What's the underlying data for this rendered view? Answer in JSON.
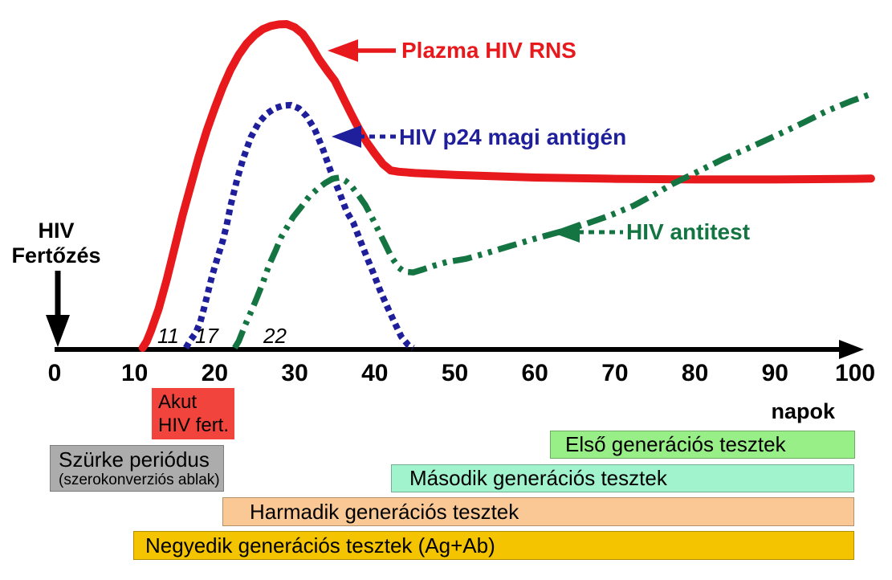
{
  "chart_data": {
    "type": "line",
    "title": "",
    "xlabel": "napok",
    "ylabel": "",
    "x_range": [
      0,
      102
    ],
    "x_ticks": [
      "0",
      "10",
      "20",
      "30",
      "40",
      "50",
      "60",
      "70",
      "80",
      "90",
      "100"
    ],
    "x_tick_values": [
      0,
      10,
      20,
      30,
      40,
      50,
      60,
      70,
      80,
      90,
      100
    ],
    "y_axis_note": "relative level, unlabeled axis (0-100 normalized)",
    "grid": "off",
    "legend_position": "inline-arrow-annotations",
    "onset_labels": [
      {
        "text": "11",
        "day": 11
      },
      {
        "text": "17",
        "day": 17
      },
      {
        "text": "22",
        "day": 22
      }
    ],
    "series": [
      {
        "name": "Plazma HIV RNS",
        "color": "#E8191D",
        "line_style": "solid",
        "points": [
          [
            11,
            0
          ],
          [
            11.5,
            2
          ],
          [
            12,
            5
          ],
          [
            13,
            12
          ],
          [
            14,
            21
          ],
          [
            15,
            31
          ],
          [
            16,
            41
          ],
          [
            17,
            50
          ],
          [
            18,
            59
          ],
          [
            19,
            67
          ],
          [
            20,
            74
          ],
          [
            21,
            80.5
          ],
          [
            22,
            86
          ],
          [
            23,
            90.5
          ],
          [
            24,
            94
          ],
          [
            25,
            96.6
          ],
          [
            26,
            98.4
          ],
          [
            27,
            99.4
          ],
          [
            28,
            99.9
          ],
          [
            29,
            100
          ],
          [
            30,
            99
          ],
          [
            31,
            97
          ],
          [
            32,
            93.5
          ],
          [
            33,
            89.3
          ],
          [
            34,
            85.8
          ],
          [
            35,
            82.5
          ],
          [
            36,
            77.5
          ],
          [
            37,
            72.5
          ],
          [
            38,
            67.7
          ],
          [
            39,
            63.5
          ],
          [
            40,
            60
          ],
          [
            41,
            56.8
          ],
          [
            42,
            54.8
          ],
          [
            43,
            54.4
          ],
          [
            45,
            54
          ],
          [
            50,
            53.4
          ],
          [
            55,
            53
          ],
          [
            60,
            52.6
          ],
          [
            70,
            52.2
          ],
          [
            80,
            52
          ],
          [
            90,
            52
          ],
          [
            100,
            52.2
          ],
          [
            102,
            52.3
          ]
        ]
      },
      {
        "name": "HIV p24 magi antigén",
        "color": "#1F1F9B",
        "line_style": "dotted",
        "points": [
          [
            16.4,
            0
          ],
          [
            17,
            2.5
          ],
          [
            17.6,
            4.5
          ],
          [
            18.2,
            8
          ],
          [
            18.7,
            12.5
          ],
          [
            19.2,
            17.5
          ],
          [
            19.6,
            21.5
          ],
          [
            20,
            25
          ],
          [
            20.5,
            29
          ],
          [
            21,
            33
          ],
          [
            21.5,
            38
          ],
          [
            22,
            44
          ],
          [
            22.8,
            52
          ],
          [
            23.5,
            58
          ],
          [
            24.5,
            65
          ],
          [
            25.5,
            69.5
          ],
          [
            26.5,
            72.3
          ],
          [
            27.5,
            74
          ],
          [
            28.5,
            74.8
          ],
          [
            29.5,
            75
          ],
          [
            30.5,
            74
          ],
          [
            31.5,
            71.5
          ],
          [
            32.5,
            67.5
          ],
          [
            33.5,
            61.5
          ],
          [
            34.5,
            54.5
          ],
          [
            35.6,
            47.9
          ],
          [
            36.5,
            42
          ],
          [
            37.3,
            38.7
          ],
          [
            38.8,
            29.3
          ],
          [
            40,
            22
          ],
          [
            40.6,
            18.1
          ],
          [
            41.5,
            13
          ],
          [
            42.3,
            8.7
          ],
          [
            43.3,
            3.5
          ],
          [
            44.2,
            0.8
          ],
          [
            44.8,
            0
          ]
        ]
      },
      {
        "name": "HIV antitest",
        "color": "#147542",
        "line_style": "dash-dot-dot",
        "points": [
          [
            22.5,
            0
          ],
          [
            23,
            2
          ],
          [
            23.8,
            7
          ],
          [
            24.6,
            11.5
          ],
          [
            25.3,
            15.6
          ],
          [
            26,
            20
          ],
          [
            26.8,
            25.6
          ],
          [
            27.6,
            30
          ],
          [
            28.3,
            34.2
          ],
          [
            29.1,
            37.5
          ],
          [
            29.8,
            40.4
          ],
          [
            30.8,
            43.5
          ],
          [
            31.8,
            46.7
          ],
          [
            32.8,
            49
          ],
          [
            33.8,
            50.9
          ],
          [
            34.7,
            52.2
          ],
          [
            35.6,
            52.6
          ],
          [
            36.4,
            51.5
          ],
          [
            37.1,
            49.9
          ],
          [
            38,
            47
          ],
          [
            38.8,
            44.2
          ],
          [
            39.6,
            40.5
          ],
          [
            40.5,
            36
          ],
          [
            41.3,
            32
          ],
          [
            42.1,
            28
          ],
          [
            43,
            24.8
          ],
          [
            43.7,
            23.5
          ],
          [
            44.8,
            23.3
          ],
          [
            46,
            24.2
          ],
          [
            47.3,
            25.3
          ],
          [
            49,
            26.5
          ],
          [
            51.4,
            27.5
          ],
          [
            54,
            29.3
          ],
          [
            57.4,
            31.8
          ],
          [
            60.4,
            34
          ],
          [
            63.4,
            36
          ],
          [
            66.4,
            38.3
          ],
          [
            69.4,
            40.9
          ],
          [
            72.4,
            44
          ],
          [
            75,
            47.5
          ],
          [
            77.1,
            50.5
          ],
          [
            80,
            54
          ],
          [
            83.5,
            58.3
          ],
          [
            86.5,
            61.5
          ],
          [
            90.5,
            66
          ],
          [
            93.5,
            69.5
          ],
          [
            96.5,
            73.2
          ],
          [
            99.5,
            76.2
          ],
          [
            102,
            78.4
          ]
        ]
      }
    ]
  },
  "annotations": {
    "infection_line1": "HIV",
    "infection_line2": "Fertőzés",
    "x_axis_unit": "napok"
  },
  "timeline_bars": [
    {
      "id": "acute",
      "line1": "Akut",
      "line2": "HIV fert.",
      "color": "#F0443C"
    },
    {
      "id": "window",
      "label": "Szürke periódus",
      "sublabel": "(szerokonverziós ablak)",
      "color": "#ACACAC"
    },
    {
      "id": "gen1",
      "label": "Első generációs tesztek",
      "color": "#98EE87"
    },
    {
      "id": "gen2",
      "label": "Második generációs tesztek",
      "color": "#A0F3CC"
    },
    {
      "id": "gen3",
      "label": "Harmadik generációs tesztek",
      "color": "#F9C894"
    },
    {
      "id": "gen4",
      "label": "Negyedik generációs tesztek (Ag+Ab)",
      "color": "#F4C400"
    }
  ],
  "colors": {
    "axis": "#000000",
    "plasma_rna": "#E8191D",
    "p24_antigen": "#1F1F9B",
    "antibody": "#147542",
    "background": "#FFFFFF"
  }
}
